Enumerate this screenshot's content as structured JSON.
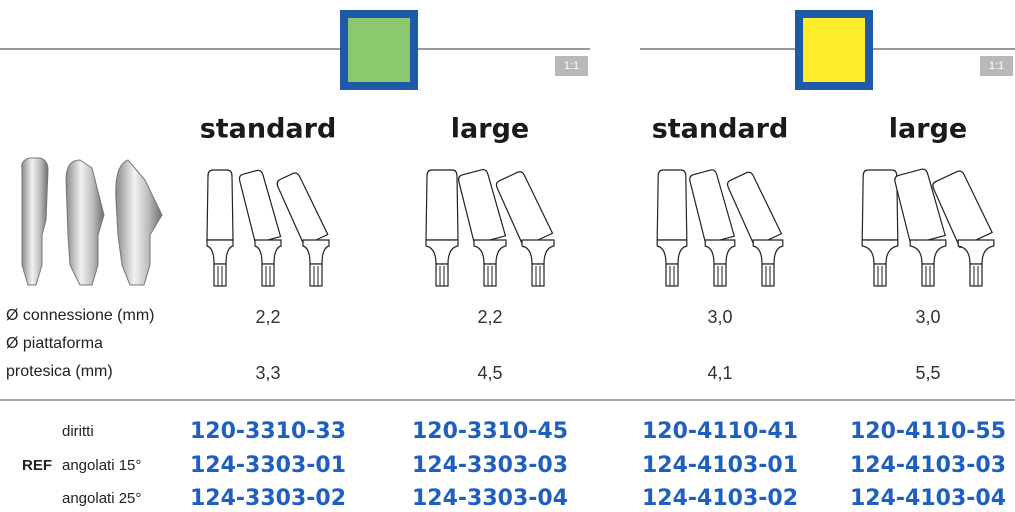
{
  "labels": {
    "connessione": "Ø connessione (mm)",
    "piattaforma_1": "Ø piattaforma",
    "piattaforma_2": "protesica (mm)",
    "ref": "REF",
    "rows": [
      "diritti",
      "angolati 15°",
      "angolati 25°"
    ]
  },
  "panels": [
    {
      "color": "#8cc96e",
      "scale": "1:1",
      "columns": [
        {
          "title": "standard",
          "connessione": "2,2",
          "piattaforma": "3,3",
          "ref": [
            "120-3310-33",
            "124-3303-01",
            "124-3303-02"
          ]
        },
        {
          "title": "large",
          "connessione": "2,2",
          "piattaforma": "4,5",
          "ref": [
            "120-3310-45",
            "124-3303-03",
            "124-3303-04"
          ]
        }
      ]
    },
    {
      "color": "#fcec2c",
      "scale": "1:1",
      "columns": [
        {
          "title": "standard",
          "connessione": "3,0",
          "piattaforma": "4,1",
          "ref": [
            "120-4110-41",
            "124-4103-01",
            "124-4103-02"
          ]
        },
        {
          "title": "large",
          "connessione": "3,0",
          "piattaforma": "5,5",
          "ref": [
            "120-4110-55",
            "124-4103-03",
            "124-4103-04"
          ]
        }
      ]
    }
  ]
}
